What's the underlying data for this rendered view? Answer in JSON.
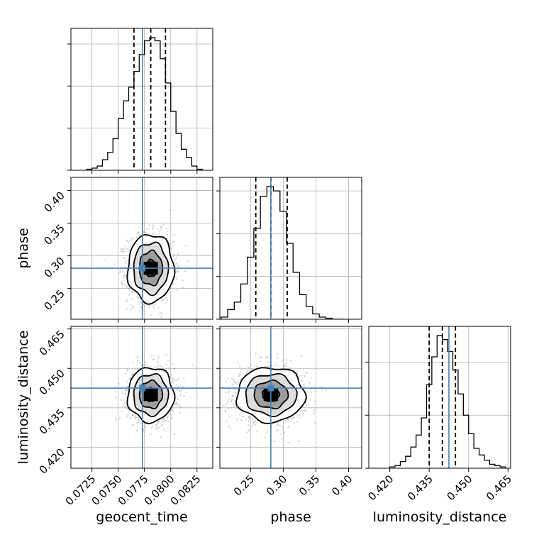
{
  "chart_data": {
    "type": "corner",
    "parameters": [
      "geocent_time",
      "phase",
      "luminosity_distance"
    ],
    "truths": {
      "geocent_time": 0.0773,
      "phase": 0.281,
      "luminosity_distance": 0.4425
    },
    "quantiles": {
      "geocent_time": [
        0.0765,
        0.0781,
        0.0795
      ],
      "phase": [
        0.258,
        0.281,
        0.306
      ],
      "luminosity_distance": [
        0.435,
        0.44,
        0.445
      ]
    },
    "ranges": {
      "geocent_time": [
        0.0705,
        0.084
      ],
      "phase": [
        0.203,
        0.42
      ],
      "luminosity_distance": [
        0.412,
        0.466
      ]
    },
    "ticks": {
      "geocent_time": [
        0.0725,
        0.075,
        0.0775,
        0.08,
        0.0825
      ],
      "phase": [
        0.25,
        0.3,
        0.35,
        0.4
      ],
      "luminosity_distance": [
        0.42,
        0.435,
        0.45,
        0.465
      ]
    },
    "tick_labels": {
      "geocent_time": [
        "0.0725",
        "0.0750",
        "0.0775",
        "0.0800",
        "0.0825"
      ],
      "phase": [
        "0.25",
        "0.30",
        "0.35",
        "0.40"
      ],
      "luminosity_distance": [
        "0.420",
        "0.435",
        "0.450",
        "0.465"
      ]
    },
    "histograms": {
      "geocent_time": {
        "edges": [
          0.072,
          0.0725,
          0.073,
          0.0735,
          0.074,
          0.0745,
          0.075,
          0.0755,
          0.076,
          0.0765,
          0.077,
          0.0775,
          0.078,
          0.0785,
          0.079,
          0.0795,
          0.08,
          0.0805,
          0.081,
          0.0815,
          0.082,
          0.0825,
          0.083
        ],
        "counts": [
          1,
          2,
          4,
          10,
          17,
          30,
          49,
          66,
          79,
          94,
          110,
          123,
          126,
          123,
          106,
          83,
          56,
          35,
          20,
          12,
          4,
          1
        ]
      },
      "phase": {
        "edges": [
          0.205,
          0.215,
          0.225,
          0.235,
          0.245,
          0.255,
          0.265,
          0.275,
          0.285,
          0.295,
          0.305,
          0.315,
          0.325,
          0.335,
          0.345,
          0.355,
          0.365,
          0.375,
          0.385,
          0.395
        ],
        "counts": [
          2,
          9,
          16,
          33,
          58,
          85,
          115,
          124,
          120,
          101,
          71,
          44,
          23,
          12,
          5,
          2,
          1,
          0,
          0
        ]
      },
      "luminosity_distance": {
        "edges": [
          0.42,
          0.422,
          0.424,
          0.426,
          0.428,
          0.43,
          0.432,
          0.434,
          0.436,
          0.438,
          0.44,
          0.442,
          0.444,
          0.446,
          0.448,
          0.45,
          0.452,
          0.454,
          0.456,
          0.458,
          0.46,
          0.462,
          0.464
        ],
        "counts": [
          1,
          2,
          5,
          9,
          16,
          25,
          38,
          63,
          84,
          100,
          97,
          88,
          74,
          56,
          40,
          26,
          15,
          10,
          6,
          3,
          2,
          1
        ]
      }
    },
    "joint_2d": [
      {
        "x": "geocent_time",
        "y": "phase",
        "center": [
          0.0781,
          0.281
        ],
        "sd": [
          0.0011,
          0.026
        ],
        "corr": 0.0
      },
      {
        "x": "geocent_time",
        "y": "luminosity_distance",
        "center": [
          0.0781,
          0.44
        ],
        "sd": [
          0.0011,
          0.0052
        ],
        "corr": 0.0
      },
      {
        "x": "phase",
        "y": "luminosity_distance",
        "center": [
          0.281,
          0.44
        ],
        "sd": [
          0.026,
          0.0052
        ],
        "corr": 0.0
      }
    ],
    "contour_sigma_levels": [
      0.5,
      1.0,
      1.5,
      2.0
    ],
    "grid": true,
    "colors": {
      "truth": "#4682b4",
      "hist": "#000000",
      "quantile": "#000000",
      "points": "#9a9a9a",
      "grid": "#b0b0b0"
    }
  }
}
